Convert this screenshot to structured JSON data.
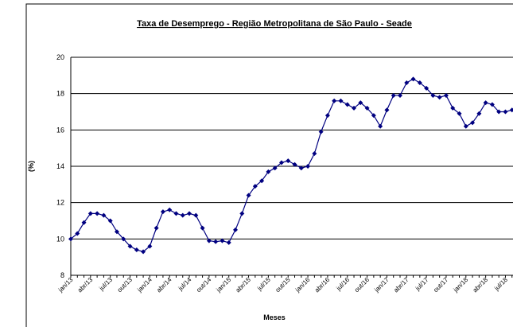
{
  "chart_data": {
    "type": "line",
    "title": "Taxa de Desemprego - Região Metropolitana de São Paulo - Seade",
    "y_label": "(%)",
    "x_label": "Meses",
    "categories": [
      "jan/13",
      null,
      null,
      "abr/13",
      null,
      null,
      "jul/13",
      null,
      null,
      "out/13",
      null,
      null,
      "jan/14",
      null,
      null,
      "abr/14",
      null,
      null,
      "jul/14",
      null,
      null,
      "out/14",
      null,
      null,
      "jan/15",
      null,
      null,
      "abr/15",
      null,
      null,
      "jul/15",
      null,
      null,
      "out/15",
      null,
      null,
      "jan/16",
      null,
      null,
      "abr/16",
      null,
      null,
      "jul/16",
      null,
      null,
      "out/16",
      null,
      null,
      "jan/17",
      null,
      null,
      "abr/17",
      null,
      null,
      "jul/17",
      null,
      null,
      "out/17",
      null,
      null,
      "jan/18",
      null,
      null,
      "abr/18",
      null,
      null,
      "jul/18",
      null
    ],
    "series": [
      {
        "color": "#000080",
        "values": [
          10.0,
          10.3,
          10.9,
          11.4,
          11.4,
          11.3,
          11.0,
          10.4,
          10.0,
          9.6,
          9.4,
          9.3,
          9.6,
          10.6,
          11.5,
          11.6,
          11.4,
          11.3,
          11.4,
          11.3,
          10.6,
          9.9,
          9.85,
          9.9,
          9.8,
          10.5,
          11.4,
          12.4,
          12.9,
          13.2,
          13.7,
          13.9,
          14.2,
          14.3,
          14.1,
          13.9,
          14.0,
          14.7,
          15.9,
          16.8,
          17.6,
          17.6,
          17.4,
          17.2,
          17.5,
          17.2,
          16.8,
          16.2,
          17.1,
          17.9,
          17.9,
          18.6,
          18.8,
          18.6,
          18.3,
          17.9,
          17.8,
          17.9,
          17.2,
          16.9,
          16.2,
          16.4,
          16.9,
          17.5,
          17.4,
          17.0,
          17.0,
          17.1
        ]
      }
    ],
    "ylim": [
      8,
      20
    ],
    "yticks": [
      8,
      10,
      12,
      14,
      16,
      18,
      20
    ],
    "grid": true
  }
}
